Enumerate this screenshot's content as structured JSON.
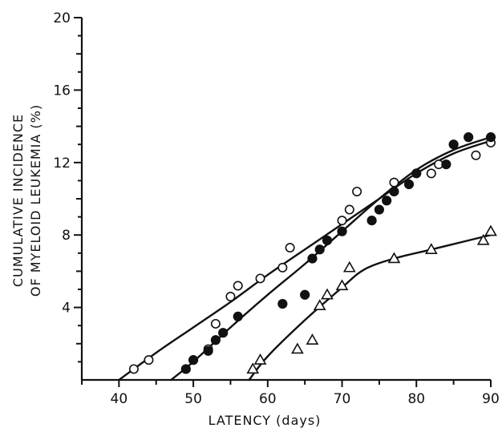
{
  "chart_data": {
    "type": "scatter",
    "xlabel": "LATENCY (days)",
    "ylabel_line1": "CUMULATIVE INCIDENCE",
    "ylabel_line2": "OF MYELOID LEUKEMIA (%)",
    "xlim": [
      35,
      90
    ],
    "ylim": [
      0,
      20
    ],
    "x_ticks": [
      40,
      50,
      60,
      70,
      80,
      90
    ],
    "y_ticks": [
      4,
      8,
      12,
      16,
      20
    ],
    "grid": false,
    "series": [
      {
        "marker": "open-circle",
        "x": [
          42,
          44,
          52,
          53,
          55,
          56,
          59,
          62,
          63,
          70,
          71,
          72,
          77,
          82,
          83,
          88,
          90
        ],
        "y": [
          0.6,
          1.1,
          1.7,
          3.1,
          4.6,
          5.2,
          5.6,
          6.2,
          7.3,
          8.8,
          9.4,
          10.4,
          10.9,
          11.4,
          11.9,
          12.4,
          13.1
        ],
        "fit_x": [
          40,
          45,
          50,
          55,
          60,
          65,
          70,
          75,
          80,
          85,
          90
        ],
        "fit_y": [
          0,
          1.5,
          2.9,
          4.3,
          5.8,
          7.2,
          8.6,
          10.0,
          11.4,
          12.5,
          13.2
        ]
      },
      {
        "marker": "filled-circle",
        "x": [
          49,
          50,
          52,
          53,
          54,
          56,
          62,
          65,
          66,
          67,
          68,
          70,
          74,
          75,
          76,
          77,
          79,
          80,
          84,
          85,
          87,
          90
        ],
        "y": [
          0.6,
          1.1,
          1.6,
          2.2,
          2.6,
          3.5,
          4.2,
          4.7,
          6.7,
          7.2,
          7.7,
          8.2,
          8.8,
          9.4,
          9.9,
          10.4,
          10.8,
          11.4,
          11.9,
          13.0,
          13.4,
          13.4
        ],
        "fit_x": [
          47,
          50,
          55,
          60,
          65,
          70,
          75,
          80,
          85,
          90
        ],
        "fit_y": [
          0,
          1.0,
          2.9,
          4.7,
          6.4,
          8.2,
          10.0,
          11.6,
          12.7,
          13.4
        ]
      },
      {
        "marker": "open-triangle",
        "x": [
          58,
          59,
          64,
          66,
          67,
          68,
          70,
          71,
          77,
          82,
          89,
          90
        ],
        "y": [
          0.6,
          1.1,
          1.7,
          2.2,
          4.1,
          4.7,
          5.2,
          6.2,
          6.7,
          7.2,
          7.7,
          8.2
        ],
        "fit_x": [
          57.5,
          60,
          65,
          70,
          73,
          77,
          82,
          86,
          90
        ],
        "fit_y": [
          0,
          1.3,
          3.3,
          5.1,
          6.1,
          6.7,
          7.2,
          7.6,
          8.0
        ]
      }
    ]
  }
}
